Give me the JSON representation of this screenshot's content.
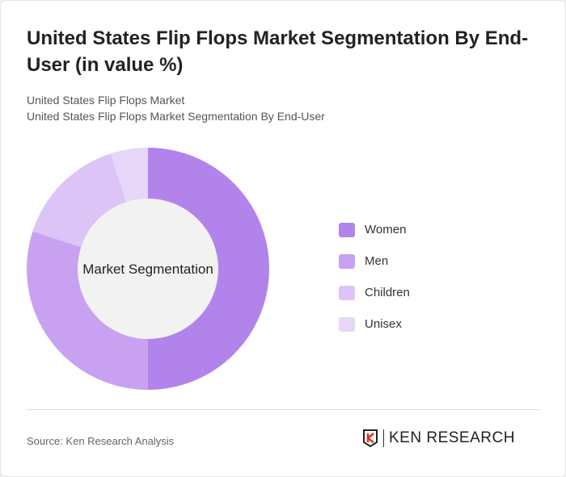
{
  "title": "United States Flip Flops Market Segmentation By End-User (in value %)",
  "subtitle1": "United States Flip Flops Market",
  "subtitle2": "United States Flip Flops Market Segmentation By End-User",
  "source": "Source: Ken Research Analysis",
  "logo_text": "KEN RESEARCH",
  "chart_data": {
    "type": "pie",
    "donut": true,
    "center_label": "Market Segmentation",
    "categories": [
      "Women",
      "Men",
      "Children",
      "Unisex"
    ],
    "values": [
      50,
      30,
      15,
      5
    ],
    "colors": [
      "#b383ec",
      "#c8a2f0",
      "#dcc4f6",
      "#e6d6f8"
    ],
    "legend_position": "right"
  }
}
